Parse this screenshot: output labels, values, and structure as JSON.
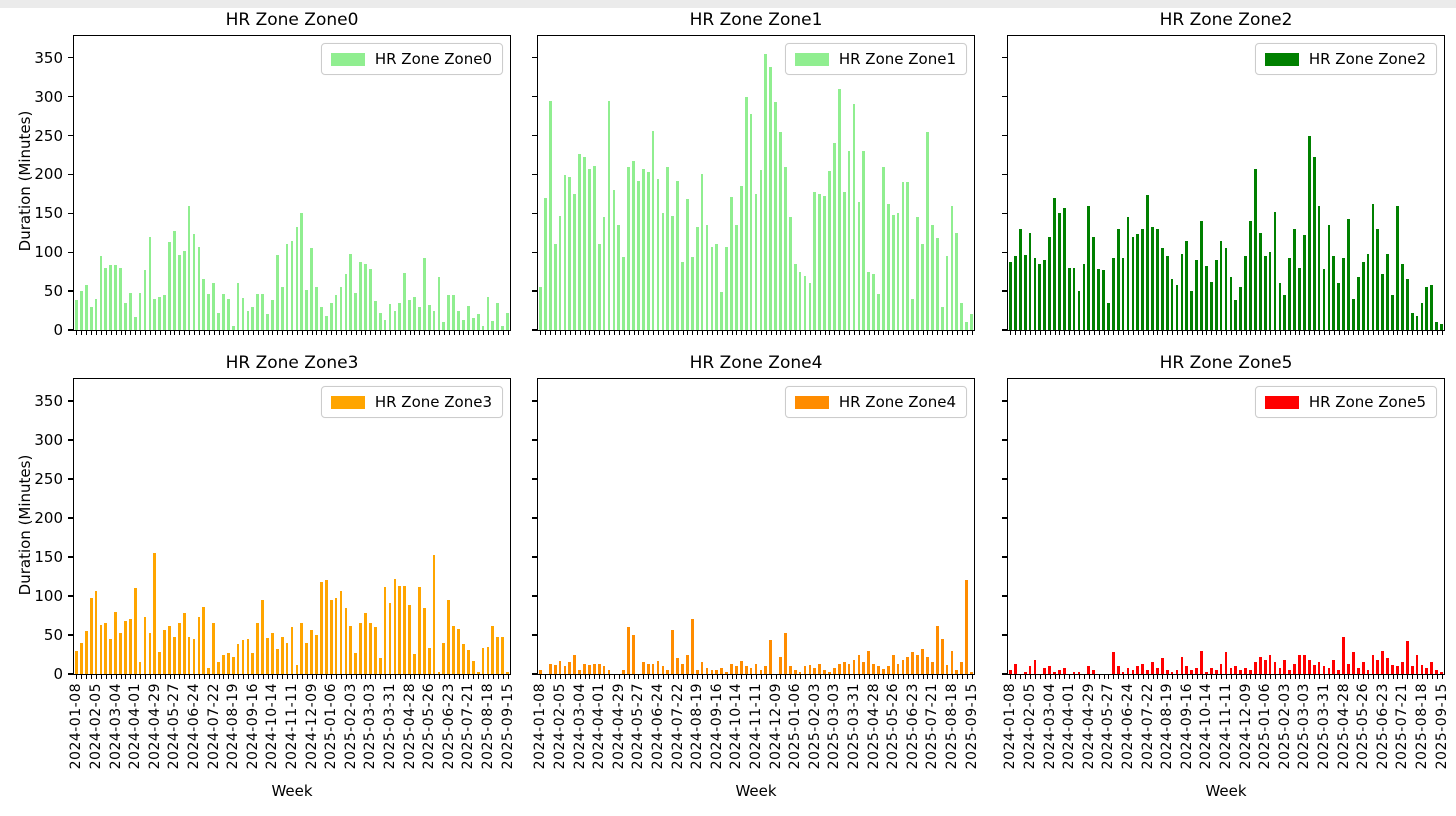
{
  "page": {
    "background": "#ffffff",
    "top_strip_color": "#ebebeb"
  },
  "ylabel": "Duration (Minutes)",
  "xlabel": "Week",
  "y_ticks": [
    "0",
    "50",
    "100",
    "150",
    "200",
    "250",
    "300",
    "350"
  ],
  "x_tick_labels": [
    "2024-01-08",
    "2024-02-05",
    "2024-03-04",
    "2024-04-01",
    "2024-04-29",
    "2024-05-27",
    "2024-06-24",
    "2024-07-22",
    "2024-08-19",
    "2024-09-16",
    "2024-10-14",
    "2024-11-11",
    "2024-12-09",
    "2025-01-06",
    "2025-02-03",
    "2025-03-03",
    "2025-03-31",
    "2025-04-28",
    "2025-05-26",
    "2025-06-23",
    "2025-07-21",
    "2025-08-18",
    "2025-09-15"
  ],
  "x_tick_every": 4,
  "chart_data": [
    {
      "type": "bar",
      "title": "HR Zone Zone0",
      "legend": "HR Zone Zone0",
      "color": "#90EE90",
      "ylim": [
        0,
        378
      ],
      "grid": false,
      "legend_position": "upper right",
      "values": [
        38,
        50,
        58,
        30,
        40,
        95,
        80,
        83,
        83,
        80,
        35,
        48,
        17,
        48,
        77,
        120,
        40,
        43,
        45,
        113,
        127,
        97,
        102,
        160,
        123,
        107,
        66,
        46,
        60,
        22,
        46,
        40,
        5,
        60,
        41,
        25,
        30,
        46,
        46,
        20,
        38,
        97,
        55,
        110,
        115,
        132,
        151,
        51,
        106,
        55,
        30,
        18,
        35,
        45,
        55,
        72,
        98,
        47,
        87,
        85,
        78,
        37,
        22,
        13,
        33,
        25,
        35,
        73,
        38,
        42,
        30,
        92,
        32,
        25,
        68,
        10,
        45,
        45,
        24,
        13,
        31,
        15,
        20,
        5,
        42,
        11,
        35,
        5,
        22
      ]
    },
    {
      "type": "bar",
      "title": "HR Zone Zone1",
      "legend": "HR Zone Zone1",
      "color": "#90EE90",
      "ylim": [
        0,
        378
      ],
      "grid": false,
      "legend_position": "upper right",
      "values": [
        55,
        170,
        295,
        111,
        147,
        199,
        197,
        175,
        226,
        222,
        207,
        211,
        111,
        145,
        295,
        180,
        135,
        94,
        209,
        217,
        192,
        207,
        203,
        256,
        194,
        150,
        209,
        147,
        192,
        87,
        169,
        94,
        132,
        201,
        135,
        107,
        111,
        49,
        107,
        171,
        135,
        185,
        300,
        278,
        175,
        206,
        355,
        338,
        293,
        255,
        210,
        145,
        85,
        75,
        70,
        60,
        178,
        175,
        172,
        205,
        240,
        310,
        177,
        230,
        290,
        165,
        230,
        75,
        72,
        46,
        210,
        162,
        148,
        150,
        190,
        190,
        40,
        145,
        110,
        255,
        135,
        118,
        30,
        95,
        160,
        125,
        35,
        10,
        20
      ]
    },
    {
      "type": "bar",
      "title": "HR Zone Zone2",
      "legend": "HR Zone Zone2",
      "color": "#008000",
      "ylim": [
        0,
        378
      ],
      "grid": false,
      "legend_position": "upper right",
      "values": [
        88,
        95,
        130,
        97,
        125,
        92,
        85,
        90,
        120,
        170,
        150,
        157,
        80,
        80,
        50,
        85,
        160,
        120,
        78,
        77,
        35,
        92,
        130,
        92,
        145,
        120,
        123,
        130,
        173,
        133,
        130,
        105,
        95,
        65,
        58,
        98,
        115,
        50,
        90,
        140,
        82,
        62,
        90,
        115,
        105,
        68,
        38,
        55,
        95,
        140,
        207,
        125,
        95,
        100,
        152,
        60,
        45,
        92,
        130,
        80,
        122,
        250,
        222,
        160,
        78,
        135,
        95,
        60,
        92,
        143,
        40,
        68,
        88,
        98,
        162,
        130,
        72,
        98,
        45,
        160,
        85,
        65,
        22,
        18,
        35,
        55,
        58,
        10,
        8
      ]
    },
    {
      "type": "bar",
      "title": "HR Zone Zone3",
      "legend": "HR Zone Zone3",
      "color": "#FFA500",
      "ylim": [
        0,
        378
      ],
      "grid": false,
      "legend_position": "upper right",
      "values": [
        30,
        40,
        55,
        97,
        107,
        63,
        65,
        45,
        80,
        52,
        68,
        70,
        110,
        15,
        73,
        52,
        155,
        28,
        57,
        62,
        48,
        65,
        78,
        48,
        45,
        73,
        86,
        8,
        66,
        16,
        25,
        27,
        22,
        38,
        43,
        45,
        27,
        66,
        95,
        46,
        53,
        32,
        47,
        40,
        60,
        11,
        65,
        40,
        57,
        50,
        118,
        121,
        95,
        97,
        107,
        84,
        61,
        27,
        65,
        78,
        65,
        60,
        21,
        112,
        91,
        122,
        113,
        113,
        88,
        26,
        111,
        85,
        33,
        152,
        3,
        40,
        95,
        61,
        58,
        38,
        31,
        17,
        2,
        33,
        34,
        62,
        47,
        48,
        2
      ]
    },
    {
      "type": "bar",
      "title": "HR Zone Zone4",
      "legend": "HR Zone Zone4",
      "color": "#FF8C00",
      "ylim": [
        0,
        378
      ],
      "grid": false,
      "legend_position": "upper right",
      "values": [
        5,
        0,
        13,
        12,
        17,
        10,
        15,
        25,
        5,
        13,
        12,
        13,
        13,
        10,
        5,
        0,
        0,
        5,
        60,
        50,
        0,
        15,
        13,
        13,
        17,
        10,
        5,
        57,
        20,
        13,
        25,
        70,
        5,
        15,
        8,
        5,
        5,
        8,
        3,
        13,
        10,
        17,
        10,
        8,
        13,
        5,
        10,
        43,
        0,
        22,
        52,
        10,
        5,
        3,
        10,
        12,
        8,
        13,
        5,
        3,
        8,
        13,
        15,
        13,
        18,
        24,
        15,
        30,
        13,
        10,
        6,
        10,
        25,
        13,
        18,
        22,
        28,
        25,
        32,
        22,
        15,
        62,
        45,
        12,
        30,
        5,
        15,
        120,
        3
      ]
    },
    {
      "type": "bar",
      "title": "HR Zone Zone5",
      "legend": "HR Zone Zone5",
      "color": "#FF0000",
      "ylim": [
        0,
        378
      ],
      "grid": false,
      "legend_position": "upper right",
      "values": [
        5,
        13,
        0,
        3,
        10,
        18,
        0,
        8,
        10,
        3,
        5,
        8,
        0,
        3,
        3,
        0,
        10,
        5,
        0,
        0,
        0,
        28,
        10,
        3,
        8,
        5,
        10,
        13,
        5,
        15,
        8,
        20,
        5,
        3,
        5,
        22,
        10,
        5,
        8,
        30,
        3,
        8,
        5,
        13,
        28,
        8,
        10,
        5,
        8,
        5,
        15,
        22,
        18,
        25,
        15,
        8,
        18,
        5,
        13,
        25,
        25,
        18,
        12,
        15,
        10,
        8,
        18,
        5,
        48,
        13,
        28,
        8,
        15,
        5,
        25,
        18,
        30,
        20,
        12,
        10,
        15,
        42,
        10,
        25,
        12,
        8,
        15,
        5,
        3
      ]
    }
  ]
}
